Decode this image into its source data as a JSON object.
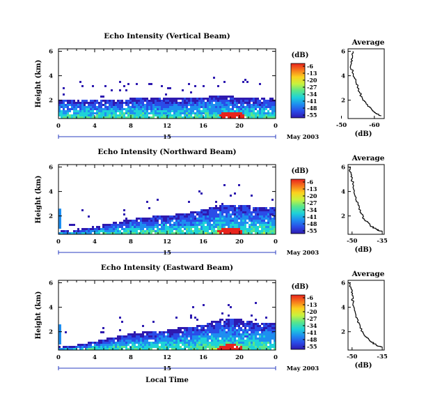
{
  "figure": {
    "xlabel": "Local Time",
    "date_label": "May 2003",
    "colorbar_label": "(dB)",
    "colorbar_ticks": [
      "-6",
      "-13",
      "-20",
      "-27",
      "-34",
      "-41",
      "-48",
      "-55"
    ],
    "colorbar_colors": [
      "#e8231c",
      "#f7781c",
      "#fbd21e",
      "#c8f23e",
      "#5ae68a",
      "#1ed2d8",
      "#1e8ef0",
      "#2a4ce8",
      "#2e1ab0"
    ]
  },
  "chart_data": [
    {
      "type": "heatmap",
      "title": "Echo Intensity (Vertical Beam)",
      "ylabel": "Height (km)",
      "xlabel": "",
      "x_ticks": [
        "0",
        "4",
        "8",
        "12",
        "16",
        "20",
        "0"
      ],
      "x_day_label": "15",
      "y_ticks": [
        "6",
        "4",
        "2"
      ],
      "xlim": [
        0,
        24
      ],
      "ylim": [
        0.5,
        6.2
      ],
      "units": "dB",
      "color_range": [
        -55,
        -6
      ],
      "cloud_top_km": [
        [
          0,
          2.0
        ],
        [
          4,
          2.0
        ],
        [
          8,
          2.1
        ],
        [
          12,
          2.1
        ],
        [
          16,
          2.2
        ],
        [
          18,
          2.4
        ],
        [
          20,
          2.2
        ],
        [
          24,
          2.1
        ]
      ],
      "hotspot": {
        "x": 19.2,
        "y": 0.8,
        "value": -6
      },
      "average_profile": {
        "title": "Average",
        "xlabel": "(dB)",
        "x_ticks": [
          "-50",
          "-60"
        ],
        "y_ticks": [
          "6",
          "4",
          "2"
        ],
        "xlim": [
          -52,
          -63
        ],
        "ylim": [
          0.5,
          6.2
        ],
        "x": [
          -53.5,
          -53.0,
          -52.8,
          -53.6,
          -54.5,
          -55.5,
          -56.5,
          -58.0,
          -60.0,
          -62.0
        ],
        "y": [
          6.0,
          5.3,
          4.8,
          4.1,
          3.3,
          2.6,
          2.0,
          1.5,
          1.0,
          0.7
        ]
      }
    },
    {
      "type": "heatmap",
      "title": "Echo Intensity (Northward Beam)",
      "ylabel": "Height (km)",
      "xlabel": "",
      "x_ticks": [
        "0",
        "4",
        "8",
        "12",
        "16",
        "20",
        "0"
      ],
      "x_day_label": "15",
      "y_ticks": [
        "6",
        "4",
        "2"
      ],
      "xlim": [
        0,
        24
      ],
      "ylim": [
        0.5,
        6.2
      ],
      "units": "dB",
      "color_range": [
        -55,
        -6
      ],
      "cloud_top_km": [
        [
          0,
          0.8
        ],
        [
          2,
          0.9
        ],
        [
          4,
          1.1
        ],
        [
          6,
          1.4
        ],
        [
          8,
          1.7
        ],
        [
          10,
          1.9
        ],
        [
          12,
          2.0
        ],
        [
          14,
          2.2
        ],
        [
          16,
          2.5
        ],
        [
          18,
          2.9
        ],
        [
          20,
          2.9
        ],
        [
          22,
          2.7
        ],
        [
          24,
          2.7
        ]
      ],
      "hotspot": {
        "x": 19.0,
        "y": 0.8,
        "value": -6
      },
      "average_profile": {
        "title": "Average",
        "xlabel": "(dB)",
        "x_ticks": [
          "-50",
          "-35"
        ],
        "y_ticks": [
          "6",
          "4",
          "2"
        ],
        "xlim": [
          -52,
          -34
        ],
        "ylim": [
          0.5,
          6.2
        ],
        "x": [
          -51.5,
          -50.5,
          -50.0,
          -49.5,
          -48.5,
          -47.0,
          -46.0,
          -44.0,
          -41.0,
          -38.0,
          -35.0
        ],
        "y": [
          6.0,
          5.5,
          5.0,
          4.3,
          3.6,
          2.9,
          2.3,
          1.7,
          1.2,
          0.9,
          0.7
        ]
      }
    },
    {
      "type": "heatmap",
      "title": "Echo Intensity (Eastward Beam)",
      "ylabel": "Height (km)",
      "xlabel": "Local Time",
      "x_ticks": [
        "0",
        "4",
        "8",
        "12",
        "16",
        "20",
        "0"
      ],
      "x_day_label": "15",
      "y_ticks": [
        "6",
        "4",
        "2"
      ],
      "xlim": [
        0,
        24
      ],
      "ylim": [
        0.5,
        6.2
      ],
      "units": "dB",
      "color_range": [
        -55,
        -6
      ],
      "cloud_top_km": [
        [
          0,
          0.8
        ],
        [
          2,
          0.9
        ],
        [
          4,
          1.2
        ],
        [
          6,
          1.5
        ],
        [
          8,
          1.8
        ],
        [
          10,
          2.0
        ],
        [
          12,
          2.1
        ],
        [
          14,
          2.3
        ],
        [
          16,
          2.6
        ],
        [
          18,
          3.0
        ],
        [
          20,
          3.0
        ],
        [
          22,
          2.7
        ],
        [
          24,
          2.7
        ]
      ],
      "hotspot": {
        "x": 19.0,
        "y": 0.7,
        "value": -6
      },
      "average_profile": {
        "title": "Average",
        "xlabel": "(dB)",
        "x_ticks": [
          "-50",
          "-35"
        ],
        "y_ticks": [
          "6",
          "4",
          "2"
        ],
        "xlim": [
          -52,
          -34
        ],
        "ylim": [
          0.5,
          6.2
        ],
        "x": [
          -51.5,
          -50.5,
          -50.0,
          -49.5,
          -48.5,
          -47.0,
          -46.0,
          -44.0,
          -41.0,
          -38.0,
          -35.0
        ],
        "y": [
          6.0,
          5.5,
          5.0,
          4.3,
          3.6,
          2.9,
          2.3,
          1.7,
          1.2,
          0.9,
          0.7
        ]
      }
    }
  ]
}
